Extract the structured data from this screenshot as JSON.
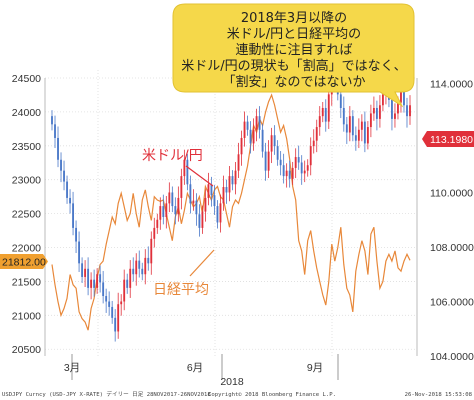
{
  "chart_data": {
    "type": "candlestick-line",
    "callout_lines": [
      "2018年3月以降の",
      "米ドル/円と日経平均の",
      "連動性に注目すれば",
      "米ドル/円の現状も「割高」ではなく、",
      "「割安」なのではないか"
    ],
    "series": [
      {
        "name": "米ドル/円",
        "type": "candlestick",
        "axis": "right",
        "color_up": "#e0303a",
        "color_down": "#4a78c8"
      },
      {
        "name": "日経平均",
        "type": "line",
        "axis": "left",
        "color": "#e8883a"
      }
    ],
    "left_axis": {
      "ticks": [
        20500,
        21000,
        21500,
        22000,
        22500,
        23000,
        23500,
        24000,
        24500
      ],
      "ylim": [
        20400,
        24500
      ]
    },
    "right_axis": {
      "ticks": [
        "104.0000",
        "106.0000",
        "108.0000",
        "110.0000",
        "112.0000",
        "114.0000"
      ],
      "ylim": [
        104,
        114.2
      ]
    },
    "x_ticks": [
      "3月",
      "6月",
      "9月"
    ],
    "x_year": "2018",
    "last_price_right": "113.1980",
    "last_price_left": "21812.00",
    "colors": {
      "up": "#e0303a",
      "down": "#4a78c8",
      "nikkei": "#e8883a",
      "callout": "#f5d84a",
      "price_tag": "#e0303a",
      "left_tag": "#f0a030",
      "grid": "#dddddd"
    },
    "footer_left": "USDJPY Curncy (USD-JPY X-RATE) デイリー 日足 28NOV2017-26NOV2018",
    "footer_mid": "Copyright© 2018 Bloomberg Finance L.P.",
    "footer_right": "26-Nov-2018 15:53:08",
    "usdjpy_close": [
      112.5,
      112.0,
      111.2,
      110.8,
      110.4,
      109.8,
      109.6,
      108.7,
      108.2,
      107.4,
      106.9,
      107.2,
      106.5,
      106.8,
      106.5,
      107.0,
      106.7,
      106.2,
      106.0,
      105.8,
      105.4,
      104.9,
      105.9,
      106.0,
      106.8,
      106.5,
      107.2,
      107.0,
      107.5,
      107.2,
      107.0,
      107.6,
      107.4,
      108.3,
      108.7,
      109.0,
      109.5,
      109.1,
      109.6,
      110.0,
      109.5,
      109.2,
      109.8,
      110.6,
      111.2,
      110.3,
      109.6,
      109.7,
      109.2,
      108.7,
      109.3,
      109.8,
      110.3,
      109.9,
      109.5,
      108.9,
      109.6,
      110.2,
      110.0,
      110.6,
      110.3,
      110.8,
      111.4,
      112.0,
      112.6,
      112.3,
      111.8,
      112.3,
      112.8,
      112.3,
      111.5,
      110.8,
      111.5,
      112.1,
      111.7,
      111.2,
      111.0,
      110.6,
      110.8,
      110.5,
      110.9,
      111.3,
      111.1,
      110.7,
      110.8,
      111.0,
      111.7,
      111.9,
      112.4,
      112.8,
      113.1,
      112.6,
      113.6,
      114.1,
      114.4,
      113.6,
      113.1,
      112.5,
      112.2,
      112.8,
      112.1,
      111.9,
      112.3,
      112.6,
      111.8,
      112.4,
      112.9,
      113.1,
      112.7,
      113.2,
      113.6,
      113.9,
      113.4,
      112.7,
      112.9,
      113.3,
      113.7,
      113.2,
      112.8,
      113.2
    ],
    "nikkei_close": [
      21750,
      21450,
      21200,
      21000,
      21100,
      21250,
      21600,
      21450,
      21400,
      21050,
      20950,
      20900,
      20780,
      21100,
      21250,
      21550,
      21750,
      21800,
      22050,
      22250,
      22450,
      22350,
      22650,
      22800,
      22600,
      22400,
      22500,
      22800,
      22500,
      22300,
      22700,
      22850,
      22600,
      22400,
      22750,
      22700,
      22680,
      22700,
      22500,
      22300,
      22100,
      22450,
      22600,
      22350,
      22550,
      22800,
      22700,
      22600,
      22650,
      22750,
      22500,
      22900,
      22800,
      22700,
      22850,
      22900,
      22750,
      22700,
      22500,
      22300,
      22600,
      22700,
      22650,
      22800,
      23000,
      23200,
      23500,
      23800,
      23700,
      23900,
      23800,
      24000,
      24150,
      24250,
      24100,
      23900,
      23700,
      23800,
      23600,
      23300,
      22900,
      22700,
      22100,
      21950,
      21600,
      22100,
      22250,
      21950,
      21700,
      21500,
      21300,
      21150,
      21500,
      22050,
      21800,
      22000,
      22300,
      21750,
      21400,
      21300,
      21050,
      21650,
      21900,
      22100,
      21950,
      21600,
      22200,
      22300,
      21800,
      21400,
      21500,
      21800,
      21900,
      21800,
      21950,
      21700,
      21650,
      21800,
      21900,
      21812
    ]
  }
}
